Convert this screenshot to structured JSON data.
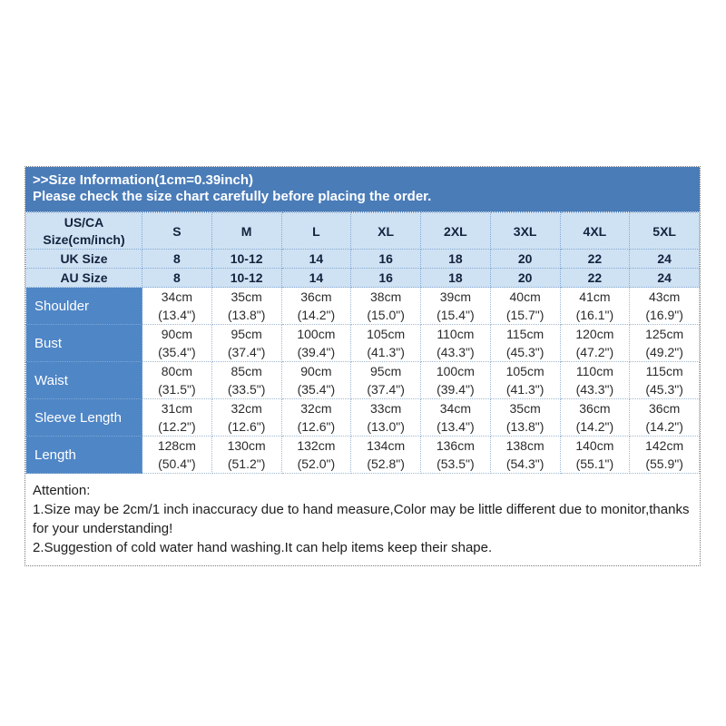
{
  "header": {
    "title": ">>Size Information(1cm=0.39inch)",
    "subtitle": "Please check the size chart carefully before placing the order."
  },
  "table": {
    "corner_label": "US/CA\nSize(cm/inch)",
    "size_columns": [
      "S",
      "M",
      "L",
      "XL",
      "2XL",
      "3XL",
      "4XL",
      "5XL"
    ],
    "uk_row": {
      "label": "UK Size",
      "values": [
        "8",
        "10-12",
        "14",
        "16",
        "18",
        "20",
        "22",
        "24"
      ]
    },
    "au_row": {
      "label": "AU Size",
      "values": [
        "8",
        "10-12",
        "14",
        "16",
        "18",
        "20",
        "22",
        "24"
      ]
    },
    "rows": [
      {
        "label": "Shoulder",
        "cells": [
          "34cm\n(13.4\")",
          "35cm\n(13.8\")",
          "36cm\n(14.2\")",
          "38cm\n(15.0\")",
          "39cm\n(15.4\")",
          "40cm\n(15.7\")",
          "41cm\n(16.1\")",
          "43cm\n(16.9\")"
        ]
      },
      {
        "label": "Bust",
        "cells": [
          "90cm\n(35.4\")",
          "95cm\n(37.4\")",
          "100cm\n(39.4\")",
          "105cm\n(41.3\")",
          "110cm\n(43.3\")",
          "115cm\n(45.3\")",
          "120cm\n(47.2\")",
          "125cm\n(49.2\")"
        ]
      },
      {
        "label": "Waist",
        "cells": [
          "80cm\n(31.5\")",
          "85cm\n(33.5\")",
          "90cm\n(35.4\")",
          "95cm\n(37.4\")",
          "100cm\n(39.4\")",
          "105cm\n(41.3\")",
          "110cm\n(43.3\")",
          "115cm\n(45.3\")"
        ]
      },
      {
        "label": "Sleeve Length",
        "cells": [
          "31cm\n(12.2\")",
          "32cm\n(12.6\")",
          "32cm\n(12.6\")",
          "33cm\n(13.0\")",
          "34cm\n(13.4\")",
          "35cm\n(13.8\")",
          "36cm\n(14.2\")",
          "36cm\n(14.2\")"
        ]
      },
      {
        "label": "Length",
        "cells": [
          "128cm\n(50.4\")",
          "130cm\n(51.2\")",
          "132cm\n(52.0\")",
          "134cm\n(52.8\")",
          "136cm\n(53.5\")",
          "138cm\n(54.3\")",
          "140cm\n(55.1\")",
          "142cm\n(55.9\")"
        ]
      }
    ]
  },
  "attention": {
    "title": "Attention:",
    "note1": "1.Size may be 2cm/1 inch inaccuracy due to hand measure,Color may be little different due to monitor,thanks for your understanding!",
    "note2": "2.Suggestion of cold water hand washing.It can help items keep their shape."
  },
  "colors": {
    "header_band_blue": "#4a7cb8",
    "row_label_blue": "#4f86c6",
    "light_blue_row": "#cfe2f3",
    "dark_navy_text": "#13233e"
  }
}
